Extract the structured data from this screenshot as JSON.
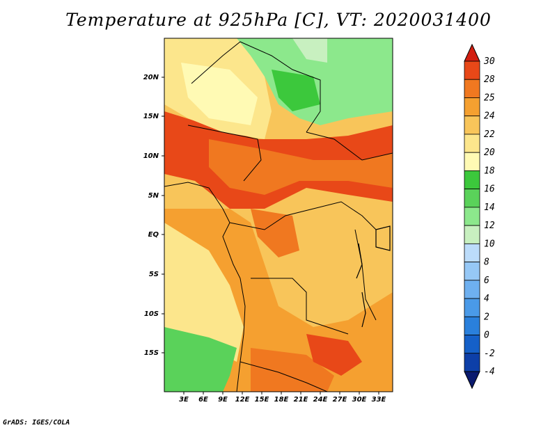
{
  "title": "Temperature at 925hPa [C], VT: 2020031400",
  "credit": "GrADS: IGES/COLA",
  "map": {
    "projection": "latlon",
    "lon_range": [
      0,
      35
    ],
    "lat_range": [
      -20,
      25
    ],
    "lat_ticks": [
      "20N",
      "15N",
      "10N",
      "5N",
      "EQ",
      "5S",
      "10S",
      "15S"
    ],
    "lon_ticks": [
      "3E",
      "6E",
      "9E",
      "12E",
      "15E",
      "18E",
      "21E",
      "24E",
      "27E",
      "30E",
      "33E"
    ]
  },
  "colorbar": {
    "levels": [
      "-4",
      "-2",
      "0",
      "2",
      "4",
      "6",
      "8",
      "10",
      "12",
      "14",
      "16",
      "18",
      "20",
      "22",
      "24",
      "25",
      "28",
      "30"
    ],
    "colors": [
      "#0a1a6e",
      "#0d3fa8",
      "#1560c8",
      "#2a80dc",
      "#4a9ae8",
      "#6eb0f0",
      "#96c8f6",
      "#bcdcfa",
      "#c8f0c0",
      "#8ce88c",
      "#5ad25a",
      "#3cc83c",
      "#fffab4",
      "#fce68c",
      "#f8c55a",
      "#f5a030",
      "#f07820",
      "#e84818",
      "#d21e10"
    ]
  },
  "legend": {
    "high_temp": "#e84818",
    "warm": "#f5a030",
    "mild": "#fce68c",
    "cool": "#5ad25a"
  }
}
